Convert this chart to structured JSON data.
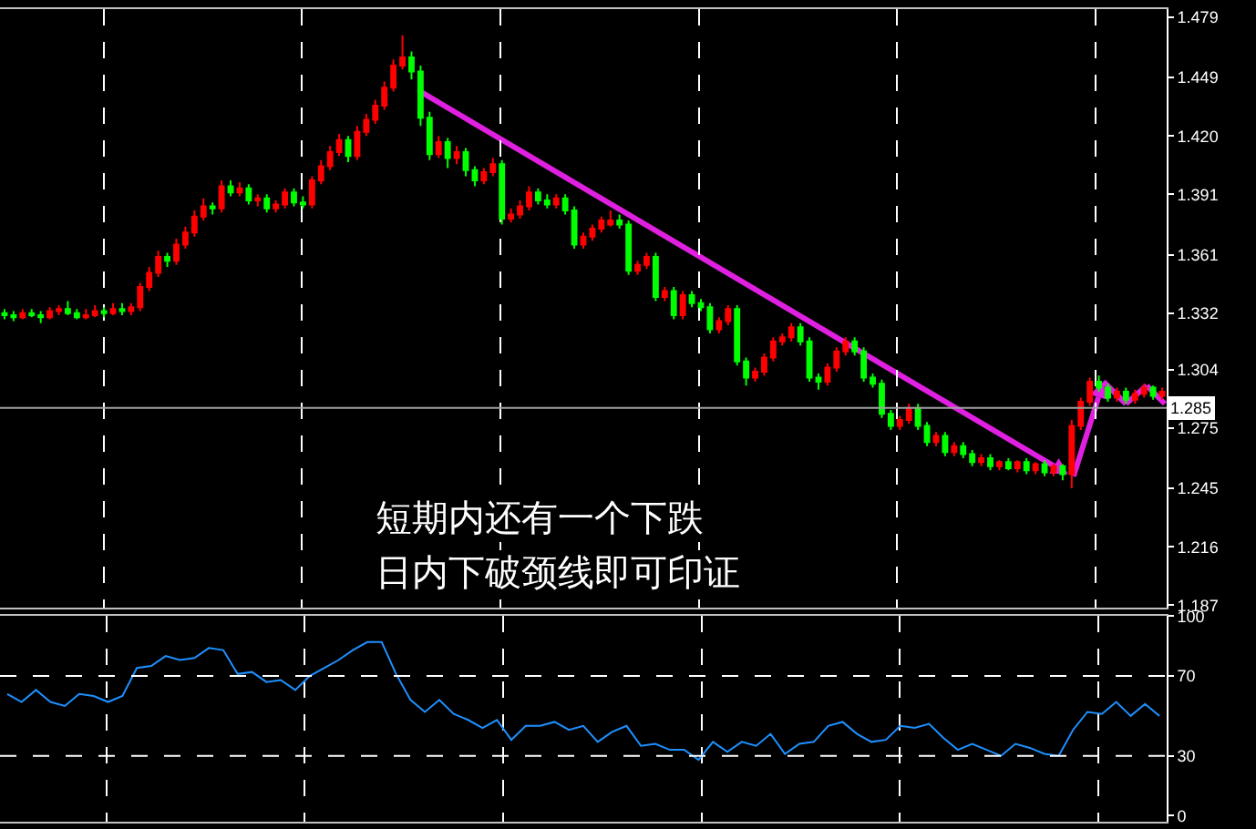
{
  "chart_data": [
    {
      "type": "candlestick",
      "grid": "x",
      "tick_labels": "y",
      "categories": [
        null,
        null,
        null,
        null,
        null,
        null,
        null,
        null,
        null,
        null,
        null,
        null,
        null,
        null,
        null,
        null,
        null,
        null,
        null,
        null,
        null,
        null,
        null,
        null,
        null,
        null,
        null,
        null,
        null,
        null,
        null,
        null,
        null,
        null,
        null,
        null,
        null,
        null,
        null,
        null,
        null,
        null,
        null,
        null,
        null,
        null,
        null,
        null,
        null,
        null,
        null,
        null,
        null,
        null,
        null,
        null,
        null,
        null,
        null,
        null,
        null,
        null,
        null,
        null,
        null,
        null,
        null,
        null,
        null,
        null,
        null,
        null,
        null,
        null,
        null,
        null,
        null,
        null,
        null,
        null,
        null,
        null,
        null,
        null,
        null,
        null,
        null,
        null,
        null,
        null,
        null,
        null,
        null,
        null,
        null,
        null,
        null,
        null,
        null,
        null,
        null,
        null,
        null,
        null,
        null,
        null,
        null,
        null,
        null,
        null,
        null,
        null,
        null,
        null,
        null,
        null,
        null,
        null,
        null,
        null,
        null,
        null,
        null,
        null,
        null,
        null,
        null,
        null,
        null
      ],
      "ylim": [
        1.186,
        1.483
      ],
      "yticks": [
        {
          "value": 1.187,
          "label": "1.187"
        },
        {
          "value": 1.216,
          "label": "1.216"
        },
        {
          "value": 1.245,
          "label": "1.245"
        },
        {
          "value": 1.275,
          "label": "1.275"
        },
        {
          "value": 1.304,
          "label": "1.304"
        },
        {
          "value": 1.332,
          "label": "1.332"
        },
        {
          "value": 1.361,
          "label": "1.361"
        },
        {
          "value": 1.391,
          "label": "1.391"
        },
        {
          "value": 1.42,
          "label": "1.420"
        },
        {
          "value": 1.449,
          "label": "1.449"
        },
        {
          "value": 1.479,
          "label": "1.479"
        }
      ],
      "ref_lines": [
        {
          "axis": "y",
          "value": 1.285,
          "label": "1.285",
          "color": "#a0a0a0"
        }
      ],
      "annotations": [
        "短期内还有一个下跌",
        "日内下破颈线即可印证"
      ],
      "ohlc": [
        [
          1.332,
          1.334,
          1.329,
          1.331
        ],
        [
          1.331,
          1.333,
          1.328,
          1.33
        ],
        [
          1.33,
          1.334,
          1.329,
          1.332
        ],
        [
          1.332,
          1.334,
          1.33,
          1.331
        ],
        [
          1.331,
          1.333,
          1.327,
          1.33
        ],
        [
          1.33,
          1.335,
          1.329,
          1.333
        ],
        [
          1.333,
          1.336,
          1.331,
          1.334
        ],
        [
          1.334,
          1.338,
          1.331,
          1.332
        ],
        [
          1.332,
          1.334,
          1.329,
          1.33
        ],
        [
          1.33,
          1.334,
          1.329,
          1.331
        ],
        [
          1.331,
          1.336,
          1.33,
          1.333
        ],
        [
          1.333,
          1.335,
          1.33,
          1.332
        ],
        [
          1.332,
          1.337,
          1.331,
          1.334
        ],
        [
          1.334,
          1.337,
          1.331,
          1.333
        ],
        [
          1.333,
          1.337,
          1.331,
          1.335
        ],
        [
          1.335,
          1.347,
          1.333,
          1.345
        ],
        [
          1.345,
          1.355,
          1.343,
          1.352
        ],
        [
          1.352,
          1.363,
          1.35,
          1.36
        ],
        [
          1.36,
          1.362,
          1.355,
          1.358
        ],
        [
          1.358,
          1.369,
          1.356,
          1.366
        ],
        [
          1.366,
          1.375,
          1.364,
          1.372
        ],
        [
          1.372,
          1.383,
          1.37,
          1.38
        ],
        [
          1.38,
          1.389,
          1.378,
          1.385
        ],
        [
          1.385,
          1.387,
          1.381,
          1.384
        ],
        [
          1.384,
          1.398,
          1.382,
          1.395
        ],
        [
          1.395,
          1.398,
          1.39,
          1.392
        ],
        [
          1.392,
          1.397,
          1.39,
          1.394
        ],
        [
          1.394,
          1.396,
          1.386,
          1.388
        ],
        [
          1.388,
          1.391,
          1.385,
          1.389
        ],
        [
          1.389,
          1.391,
          1.382,
          1.384
        ],
        [
          1.384,
          1.388,
          1.382,
          1.386
        ],
        [
          1.386,
          1.394,
          1.384,
          1.392
        ],
        [
          1.392,
          1.394,
          1.385,
          1.387
        ],
        [
          1.387,
          1.39,
          1.384,
          1.386
        ],
        [
          1.386,
          1.4,
          1.384,
          1.398
        ],
        [
          1.398,
          1.408,
          1.396,
          1.405
        ],
        [
          1.405,
          1.415,
          1.403,
          1.412
        ],
        [
          1.412,
          1.421,
          1.41,
          1.418
        ],
        [
          1.418,
          1.42,
          1.407,
          1.41
        ],
        [
          1.41,
          1.425,
          1.408,
          1.422
        ],
        [
          1.422,
          1.431,
          1.42,
          1.428
        ],
        [
          1.428,
          1.438,
          1.426,
          1.435
        ],
        [
          1.435,
          1.447,
          1.433,
          1.444
        ],
        [
          1.444,
          1.458,
          1.442,
          1.455
        ],
        [
          1.455,
          1.47,
          1.453,
          1.459
        ],
        [
          1.459,
          1.462,
          1.448,
          1.452
        ],
        [
          1.452,
          1.455,
          1.425,
          1.429
        ],
        [
          1.429,
          1.432,
          1.408,
          1.411
        ],
        [
          1.411,
          1.42,
          1.409,
          1.417
        ],
        [
          1.417,
          1.419,
          1.404,
          1.409
        ],
        [
          1.409,
          1.415,
          1.406,
          1.412
        ],
        [
          1.412,
          1.414,
          1.4,
          1.403
        ],
        [
          1.403,
          1.405,
          1.395,
          1.398
        ],
        [
          1.398,
          1.404,
          1.396,
          1.402
        ],
        [
          1.402,
          1.409,
          1.4,
          1.406
        ],
        [
          1.406,
          1.408,
          1.376,
          1.379
        ],
        [
          1.379,
          1.384,
          1.377,
          1.381
        ],
        [
          1.381,
          1.388,
          1.379,
          1.385
        ],
        [
          1.385,
          1.395,
          1.383,
          1.392
        ],
        [
          1.392,
          1.394,
          1.386,
          1.388
        ],
        [
          1.388,
          1.391,
          1.384,
          1.386
        ],
        [
          1.386,
          1.391,
          1.384,
          1.389
        ],
        [
          1.389,
          1.391,
          1.381,
          1.383
        ],
        [
          1.383,
          1.385,
          1.364,
          1.366
        ],
        [
          1.366,
          1.372,
          1.364,
          1.37
        ],
        [
          1.37,
          1.376,
          1.368,
          1.374
        ],
        [
          1.374,
          1.38,
          1.372,
          1.378
        ],
        [
          1.376,
          1.383,
          1.375,
          1.378
        ],
        [
          1.378,
          1.381,
          1.374,
          1.376
        ],
        [
          1.376,
          1.378,
          1.351,
          1.353
        ],
        [
          1.353,
          1.358,
          1.351,
          1.356
        ],
        [
          1.356,
          1.362,
          1.354,
          1.36
        ],
        [
          1.36,
          1.362,
          1.338,
          1.34
        ],
        [
          1.34,
          1.345,
          1.338,
          1.343
        ],
        [
          1.343,
          1.345,
          1.329,
          1.331
        ],
        [
          1.331,
          1.343,
          1.329,
          1.341
        ],
        [
          1.341,
          1.343,
          1.335,
          1.337
        ],
        [
          1.337,
          1.339,
          1.333,
          1.335
        ],
        [
          1.335,
          1.337,
          1.322,
          1.324
        ],
        [
          1.324,
          1.33,
          1.322,
          1.328
        ],
        [
          1.328,
          1.336,
          1.326,
          1.334
        ],
        [
          1.334,
          1.336,
          1.306,
          1.308
        ],
        [
          1.308,
          1.31,
          1.296,
          1.3
        ],
        [
          1.3,
          1.305,
          1.298,
          1.303
        ],
        [
          1.303,
          1.312,
          1.301,
          1.31
        ],
        [
          1.31,
          1.32,
          1.308,
          1.318
        ],
        [
          1.318,
          1.322,
          1.316,
          1.32
        ],
        [
          1.32,
          1.327,
          1.318,
          1.325
        ],
        [
          1.325,
          1.327,
          1.316,
          1.318
        ],
        [
          1.318,
          1.32,
          1.298,
          1.3
        ],
        [
          1.3,
          1.302,
          1.294,
          1.298
        ],
        [
          1.298,
          1.307,
          1.296,
          1.305
        ],
        [
          1.305,
          1.315,
          1.303,
          1.313
        ],
        [
          1.313,
          1.32,
          1.311,
          1.318
        ],
        [
          1.318,
          1.32,
          1.311,
          1.313
        ],
        [
          1.313,
          1.315,
          1.298,
          1.3
        ],
        [
          1.3,
          1.302,
          1.295,
          1.297
        ],
        [
          1.297,
          1.299,
          1.28,
          1.282
        ],
        [
          1.282,
          1.284,
          1.274,
          1.276
        ],
        [
          1.276,
          1.281,
          1.274,
          1.279
        ],
        [
          1.279,
          1.287,
          1.277,
          1.285
        ],
        [
          1.285,
          1.287,
          1.274,
          1.276
        ],
        [
          1.276,
          1.278,
          1.266,
          1.268
        ],
        [
          1.268,
          1.273,
          1.266,
          1.271
        ],
        [
          1.271,
          1.273,
          1.261,
          1.263
        ],
        [
          1.263,
          1.268,
          1.261,
          1.266
        ],
        [
          1.266,
          1.268,
          1.26,
          1.262
        ],
        [
          1.262,
          1.264,
          1.256,
          1.258
        ],
        [
          1.258,
          1.262,
          1.256,
          1.26
        ],
        [
          1.26,
          1.262,
          1.254,
          1.256
        ],
        [
          1.256,
          1.259,
          1.254,
          1.258
        ],
        [
          1.258,
          1.26,
          1.254,
          1.255
        ],
        [
          1.255,
          1.259,
          1.253,
          1.258
        ],
        [
          1.258,
          1.26,
          1.252,
          1.254
        ],
        [
          1.254,
          1.258,
          1.252,
          1.257
        ],
        [
          1.257,
          1.259,
          1.251,
          1.253
        ],
        [
          1.253,
          1.257,
          1.251,
          1.256
        ],
        [
          1.256,
          1.257,
          1.249,
          1.252
        ],
        [
          1.252,
          1.279,
          1.245,
          1.276
        ],
        [
          1.276,
          1.29,
          1.274,
          1.288
        ],
        [
          1.288,
          1.3,
          1.286,
          1.298
        ],
        [
          1.298,
          1.301,
          1.293,
          1.295
        ],
        [
          1.295,
          1.297,
          1.288,
          1.29
        ],
        [
          1.29,
          1.295,
          1.288,
          1.293
        ],
        [
          1.293,
          1.295,
          1.287,
          1.289
        ],
        [
          1.289,
          1.294,
          1.287,
          1.292
        ],
        [
          1.292,
          1.297,
          1.29,
          1.295
        ],
        [
          1.295,
          1.296,
          1.289,
          1.291
        ],
        [
          1.291,
          1.295,
          1.289,
          1.293
        ]
      ],
      "colors": [
        "#00ff00",
        "#00ff00",
        "#ff0000",
        "#00ff00",
        "#00ff00",
        "#ff0000",
        "#ff0000",
        "#00ff00",
        "#00ff00",
        "#ff0000",
        "#ff0000",
        "#00ff00",
        "#ff0000",
        "#00ff00",
        "#ff0000",
        "#ff0000",
        "#ff0000",
        "#ff0000",
        "#00ff00",
        "#ff0000",
        "#ff0000",
        "#ff0000",
        "#ff0000",
        "#00ff00",
        "#ff0000",
        "#00ff00",
        "#ff0000",
        "#00ff00",
        "#ff0000",
        "#00ff00",
        "#ff0000",
        "#ff0000",
        "#00ff00",
        "#00ff00",
        "#ff0000",
        "#ff0000",
        "#ff0000",
        "#ff0000",
        "#00ff00",
        "#ff0000",
        "#ff0000",
        "#ff0000",
        "#ff0000",
        "#ff0000",
        "#ff0000",
        "#00ff00",
        "#00ff00",
        "#00ff00",
        "#ff0000",
        "#00ff00",
        "#ff0000",
        "#00ff00",
        "#00ff00",
        "#ff0000",
        "#ff0000",
        "#00ff00",
        "#ff0000",
        "#ff0000",
        "#ff0000",
        "#00ff00",
        "#00ff00",
        "#ff0000",
        "#00ff00",
        "#00ff00",
        "#ff0000",
        "#ff0000",
        "#ff0000",
        "#ff0000",
        "#00ff00",
        "#00ff00",
        "#ff0000",
        "#ff0000",
        "#00ff00",
        "#ff0000",
        "#00ff00",
        "#ff0000",
        "#00ff00",
        "#00ff00",
        "#00ff00",
        "#ff0000",
        "#ff0000",
        "#00ff00",
        "#00ff00",
        "#ff0000",
        "#ff0000",
        "#ff0000",
        "#ff0000",
        "#ff0000",
        "#00ff00",
        "#00ff00",
        "#00ff00",
        "#ff0000",
        "#ff0000",
        "#ff0000",
        "#00ff00",
        "#00ff00",
        "#00ff00",
        "#00ff00",
        "#00ff00",
        "#ff0000",
        "#ff0000",
        "#00ff00",
        "#00ff00",
        "#ff0000",
        "#00ff00",
        "#ff0000",
        "#00ff00",
        "#00ff00",
        "#ff0000",
        "#00ff00",
        "#ff0000",
        "#00ff00",
        "#ff0000",
        "#00ff00",
        "#ff0000",
        "#00ff00",
        "#ff0000",
        "#00ff00",
        "#ff0000",
        "#ff0000",
        "#ff0000",
        "#00ff00",
        "#00ff00",
        "#ff0000",
        "#00ff00",
        "#ff0000",
        "#ff0000",
        "#00ff00",
        "#ff0000"
      ]
    },
    {
      "type": "line",
      "grid": "x",
      "tick_labels": "y",
      "categories": [
        null,
        null,
        null,
        null,
        null,
        null,
        null,
        null,
        null,
        null,
        null,
        null,
        null,
        null,
        null,
        null,
        null,
        null,
        null,
        null,
        null,
        null,
        null,
        null,
        null,
        null,
        null,
        null,
        null,
        null,
        null,
        null,
        null,
        null,
        null,
        null,
        null,
        null,
        null,
        null,
        null,
        null,
        null,
        null,
        null,
        null,
        null,
        null,
        null,
        null,
        null,
        null,
        null,
        null,
        null,
        null,
        null,
        null,
        null,
        null,
        null,
        null,
        null,
        null,
        null,
        null,
        null,
        null,
        null,
        null,
        null,
        null,
        null,
        null,
        null,
        null,
        null,
        null,
        null,
        null,
        null
      ],
      "ylim": [
        -3,
        100
      ],
      "yticks": [
        0,
        30,
        70,
        100
      ],
      "ref_lines": [
        {
          "axis": "y",
          "value": 30,
          "color": "#ffffff",
          "line_style": "dashed"
        },
        {
          "axis": "y",
          "value": 70,
          "color": "#ffffff",
          "line_style": "dashed"
        }
      ],
      "series": [
        {
          "color": "#1e90ff",
          "values": [
            61,
            57,
            63,
            57,
            55,
            61,
            60,
            57,
            60,
            74,
            75,
            80,
            78,
            79,
            84,
            83,
            71,
            72,
            67,
            68,
            63,
            70,
            74,
            78,
            83,
            87,
            87,
            71,
            58,
            52,
            58,
            51,
            48,
            44,
            48,
            38,
            45,
            45,
            47,
            43,
            45,
            37,
            42,
            45,
            35,
            36,
            33,
            33,
            28,
            37,
            32,
            37,
            35,
            41,
            31,
            36,
            37,
            45,
            47,
            41,
            37,
            38,
            45,
            44,
            46,
            39,
            33,
            36,
            33,
            30,
            36,
            34,
            31,
            30,
            43,
            52,
            51,
            57,
            50,
            56,
            50
          ]
        }
      ]
    }
  ]
}
